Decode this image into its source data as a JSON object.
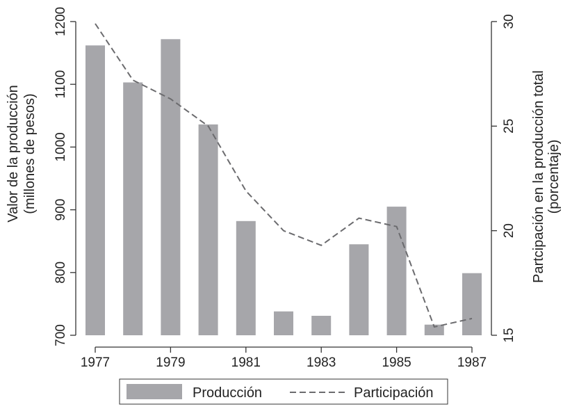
{
  "chart_data": {
    "type": "bar",
    "x": [
      1977,
      1978,
      1979,
      1980,
      1981,
      1982,
      1983,
      1984,
      1985,
      1986,
      1987
    ],
    "x_tick_labels": [
      "1977",
      "1979",
      "1981",
      "1983",
      "1985",
      "1987"
    ],
    "series": [
      {
        "name": "Producción",
        "type": "bar",
        "axis": "left",
        "values": [
          1162,
          1103,
          1172,
          1036,
          882,
          738,
          731,
          845,
          905,
          717,
          799
        ]
      },
      {
        "name": "Participación",
        "type": "line",
        "line_style": "dashed",
        "axis": "right",
        "values": [
          29.9,
          27.2,
          26.3,
          25.0,
          21.9,
          20.0,
          19.3,
          20.6,
          20.2,
          15.4,
          15.8
        ]
      }
    ],
    "ylabel_left": [
      "Valor de la producción",
      "(millones de pesos)"
    ],
    "ylabel_right": [
      "Partcipación en la producción total",
      "(porcentaje)"
    ],
    "ylim_left": [
      700,
      1200
    ],
    "yticks_left": [
      "700",
      "800",
      "900",
      "1000",
      "1100",
      "1200"
    ],
    "ylim_right": [
      15,
      30
    ],
    "yticks_right": [
      "15",
      "20",
      "25",
      "30"
    ],
    "legend": {
      "placement": "bottom",
      "entries": [
        "Producción",
        "Participación"
      ]
    },
    "grid": false,
    "colors": {
      "bar": "#a6a6aa",
      "line": "#6b6b6e",
      "axis": "#333333"
    }
  }
}
